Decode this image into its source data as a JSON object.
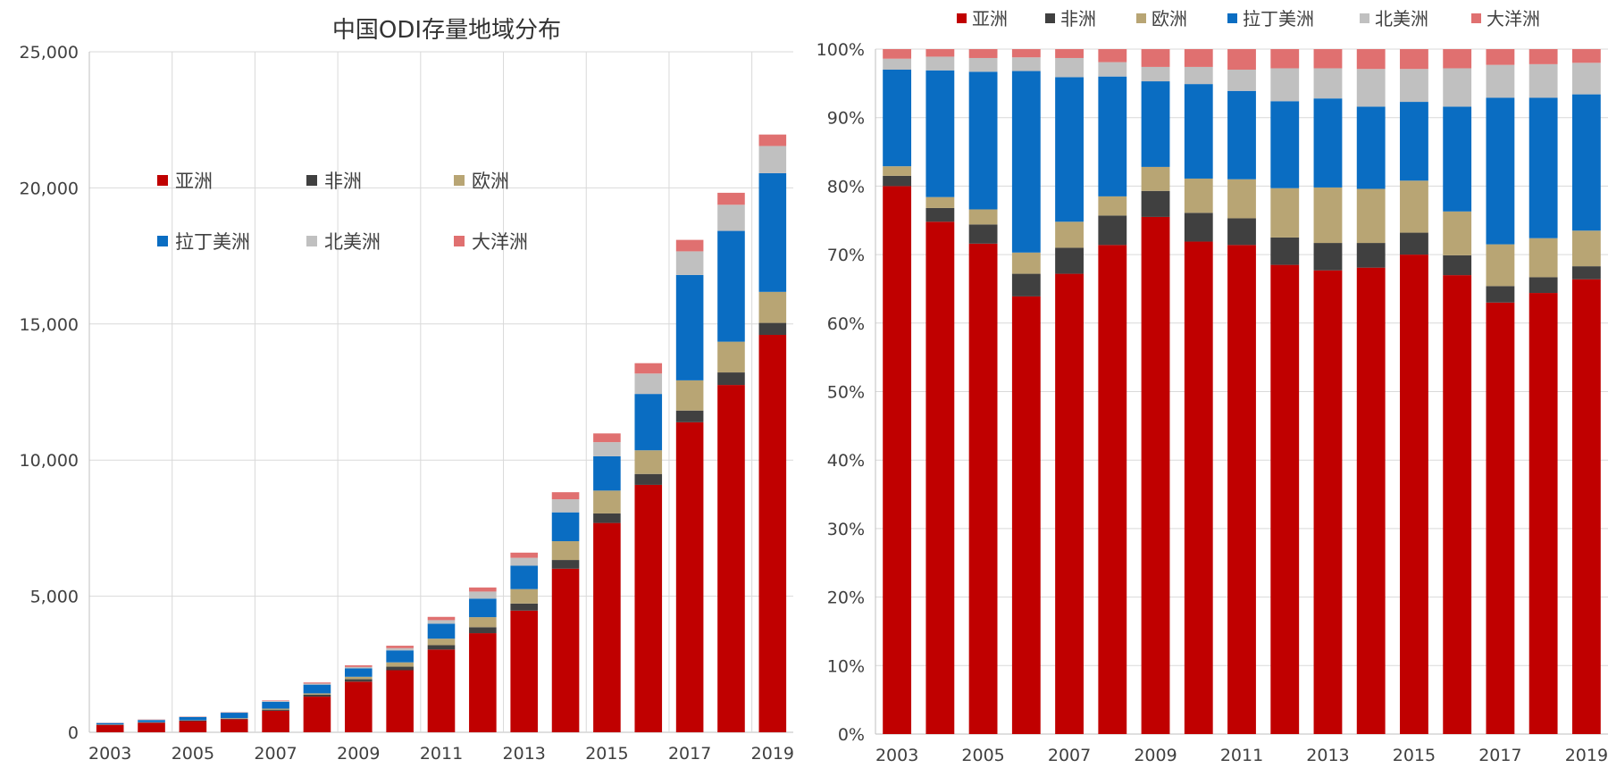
{
  "colors": {
    "asia": "#c00000",
    "africa": "#404040",
    "europe": "#b8a574",
    "latam": "#0a6dc2",
    "namerica": "#c0c0c0",
    "oceania": "#e07070",
    "grid": "#d9d9d9",
    "axis": "#bfbfbf"
  },
  "chart_data": [
    {
      "type": "bar",
      "stacked": true,
      "title": "中国ODI存量地域分布",
      "xlabel": "",
      "ylabel": "",
      "ylim": [
        0,
        25000
      ],
      "yticks": [
        "0",
        "5,000",
        "10,000",
        "15,000",
        "20,000",
        "25,000"
      ],
      "ytick_values": [
        0,
        5000,
        10000,
        15000,
        20000,
        25000
      ],
      "xtick_labels": [
        "2003",
        "2005",
        "2007",
        "2009",
        "2011",
        "2013",
        "2015",
        "2017",
        "2019"
      ],
      "grid": true,
      "legend": "inside-upper-left",
      "categories": [
        "2003",
        "2004",
        "2005",
        "2006",
        "2007",
        "2008",
        "2009",
        "2010",
        "2011",
        "2012",
        "2013",
        "2014",
        "2015",
        "2016",
        "2017",
        "2018",
        "2019"
      ],
      "series": [
        {
          "name": "亚洲",
          "key": "asia",
          "values": [
            270,
            350,
            410,
            480,
            790,
            1310,
            1860,
            2280,
            3040,
            3640,
            4470,
            6010,
            7690,
            9090,
            11390,
            12760,
            14600
          ]
        },
        {
          "name": "非洲",
          "key": "africa",
          "values": [
            10,
            10,
            20,
            20,
            40,
            70,
            90,
            130,
            160,
            220,
            260,
            320,
            350,
            400,
            430,
            460,
            440
          ]
        },
        {
          "name": "欧洲",
          "key": "europe",
          "values": [
            10,
            10,
            10,
            20,
            40,
            50,
            90,
            160,
            240,
            370,
            530,
            690,
            840,
            870,
            1110,
            1130,
            1140
          ]
        },
        {
          "name": "拉丁美洲",
          "key": "latam",
          "values": [
            50,
            80,
            120,
            200,
            250,
            320,
            310,
            440,
            550,
            680,
            860,
            1060,
            1260,
            2070,
            3870,
            4070,
            4360
          ]
        },
        {
          "name": "北美洲",
          "key": "namerica",
          "values": [
            5,
            10,
            10,
            10,
            30,
            40,
            50,
            80,
            130,
            260,
            290,
            480,
            520,
            750,
            870,
            960,
            1000
          ]
        },
        {
          "name": "大洋洲",
          "key": "oceania",
          "values": [
            5,
            10,
            10,
            10,
            20,
            40,
            60,
            90,
            120,
            150,
            190,
            260,
            320,
            380,
            420,
            440,
            420
          ]
        }
      ]
    },
    {
      "type": "bar",
      "stacked": true,
      "percent": true,
      "title": "",
      "xlabel": "",
      "ylabel": "",
      "ylim": [
        0,
        100
      ],
      "yticks": [
        "0%",
        "10%",
        "20%",
        "30%",
        "40%",
        "50%",
        "60%",
        "70%",
        "80%",
        "90%",
        "100%"
      ],
      "ytick_values": [
        0,
        10,
        20,
        30,
        40,
        50,
        60,
        70,
        80,
        90,
        100
      ],
      "xtick_labels": [
        "2003",
        "2005",
        "2007",
        "2009",
        "2011",
        "2013",
        "2015",
        "2017",
        "2019"
      ],
      "grid": true,
      "legend": "top",
      "categories": [
        "2003",
        "2004",
        "2005",
        "2006",
        "2007",
        "2008",
        "2009",
        "2010",
        "2011",
        "2012",
        "2013",
        "2014",
        "2015",
        "2016",
        "2017",
        "2018",
        "2019"
      ],
      "series": [
        {
          "name": "亚洲",
          "key": "asia",
          "values": [
            80.0,
            74.8,
            71.6,
            63.9,
            67.2,
            71.4,
            75.5,
            71.9,
            71.4,
            68.5,
            67.7,
            68.1,
            70.0,
            67.0,
            63.0,
            64.4,
            66.4
          ]
        },
        {
          "name": "非洲",
          "key": "africa",
          "values": [
            1.5,
            2.0,
            2.8,
            3.3,
            3.8,
            4.3,
            3.8,
            4.2,
            3.9,
            4.0,
            4.0,
            3.6,
            3.2,
            2.9,
            2.4,
            2.3,
            1.9
          ]
        },
        {
          "name": "欧洲",
          "key": "europe",
          "values": [
            1.4,
            1.6,
            2.2,
            3.1,
            3.8,
            2.8,
            3.5,
            5.0,
            5.7,
            7.2,
            8.1,
            7.9,
            7.6,
            6.4,
            6.1,
            5.7,
            5.2
          ]
        },
        {
          "name": "拉丁美洲",
          "key": "latam",
          "values": [
            14.1,
            18.5,
            20.1,
            26.5,
            21.1,
            17.5,
            12.5,
            13.8,
            12.9,
            12.7,
            13.0,
            12.0,
            11.5,
            15.3,
            21.4,
            20.5,
            19.9
          ]
        },
        {
          "name": "北美洲",
          "key": "namerica",
          "values": [
            1.6,
            2.0,
            2.0,
            2.0,
            2.8,
            2.1,
            2.1,
            2.5,
            3.1,
            4.8,
            4.4,
            5.5,
            4.8,
            5.6,
            4.8,
            4.9,
            4.6
          ]
        },
        {
          "name": "大洋洲",
          "key": "oceania",
          "values": [
            1.4,
            1.1,
            1.3,
            1.2,
            1.3,
            1.9,
            2.6,
            2.6,
            3.0,
            2.8,
            2.8,
            2.9,
            2.9,
            2.8,
            2.3,
            2.2,
            2.0
          ]
        }
      ]
    }
  ]
}
